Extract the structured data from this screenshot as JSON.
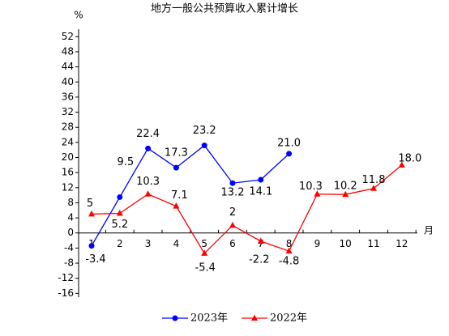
{
  "chart_data": {
    "type": "line",
    "title": "地方一般公共预算收入累计增长",
    "y_label": "%",
    "x_label": "月",
    "categories": [
      "1",
      "2",
      "3",
      "4",
      "5",
      "6",
      "7",
      "8",
      "9",
      "10",
      "11",
      "12"
    ],
    "series": [
      {
        "name": "2023年",
        "color": "#0000ff",
        "marker": "circle",
        "values": [
          -3.4,
          9.5,
          22.4,
          17.3,
          23.2,
          13.2,
          14.1,
          21.0,
          null,
          null,
          null,
          null
        ],
        "value_labels": [
          "-3.4",
          "9.5",
          "22.4",
          "17.3",
          "23.2",
          "13.2",
          "14.1",
          "21.0",
          null,
          null,
          null,
          null
        ]
      },
      {
        "name": "2022年",
        "color": "#ff0000",
        "marker": "triangle",
        "values": [
          5,
          5.2,
          10.3,
          7.1,
          -5.4,
          2,
          -2.2,
          -4.8,
          10.3,
          10.2,
          11.8,
          18.0
        ],
        "value_labels": [
          "5",
          "5.2",
          "10.3",
          "7.1",
          "-5.4",
          "2",
          "-2.2",
          "-4.8",
          "10.3",
          "10.2",
          "11.8",
          "18.0"
        ]
      }
    ],
    "ylim": [
      -17,
      54
    ],
    "yticks": [
      -16,
      -12,
      -8,
      -4,
      0,
      4,
      8,
      12,
      16,
      20,
      24,
      28,
      32,
      36,
      40,
      44,
      48,
      52
    ],
    "grid": false,
    "legend": "bottom"
  }
}
